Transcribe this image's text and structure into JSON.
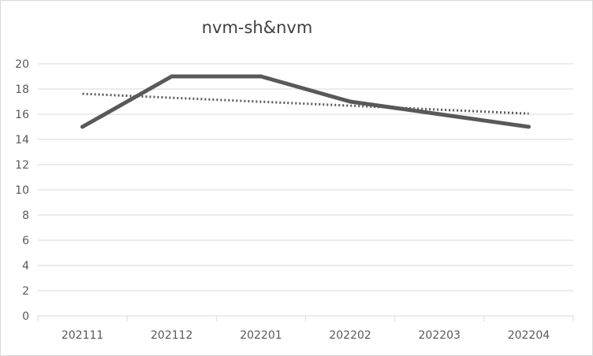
{
  "chart_data": {
    "type": "line",
    "title": "nvm-sh&nvm",
    "categories": [
      "202111",
      "202112",
      "202201",
      "202202",
      "202203",
      "202204"
    ],
    "series": [
      {
        "values": [
          15,
          19,
          19,
          17,
          16,
          15
        ],
        "color": "#595959",
        "style": "solid"
      }
    ],
    "trendline": {
      "type": "linear",
      "style": "dotted",
      "color": "#595959"
    },
    "ylim": [
      0,
      20
    ],
    "yticks": [
      0,
      2,
      4,
      6,
      8,
      10,
      12,
      14,
      16,
      18,
      20
    ],
    "grid": true,
    "legend": "none"
  }
}
